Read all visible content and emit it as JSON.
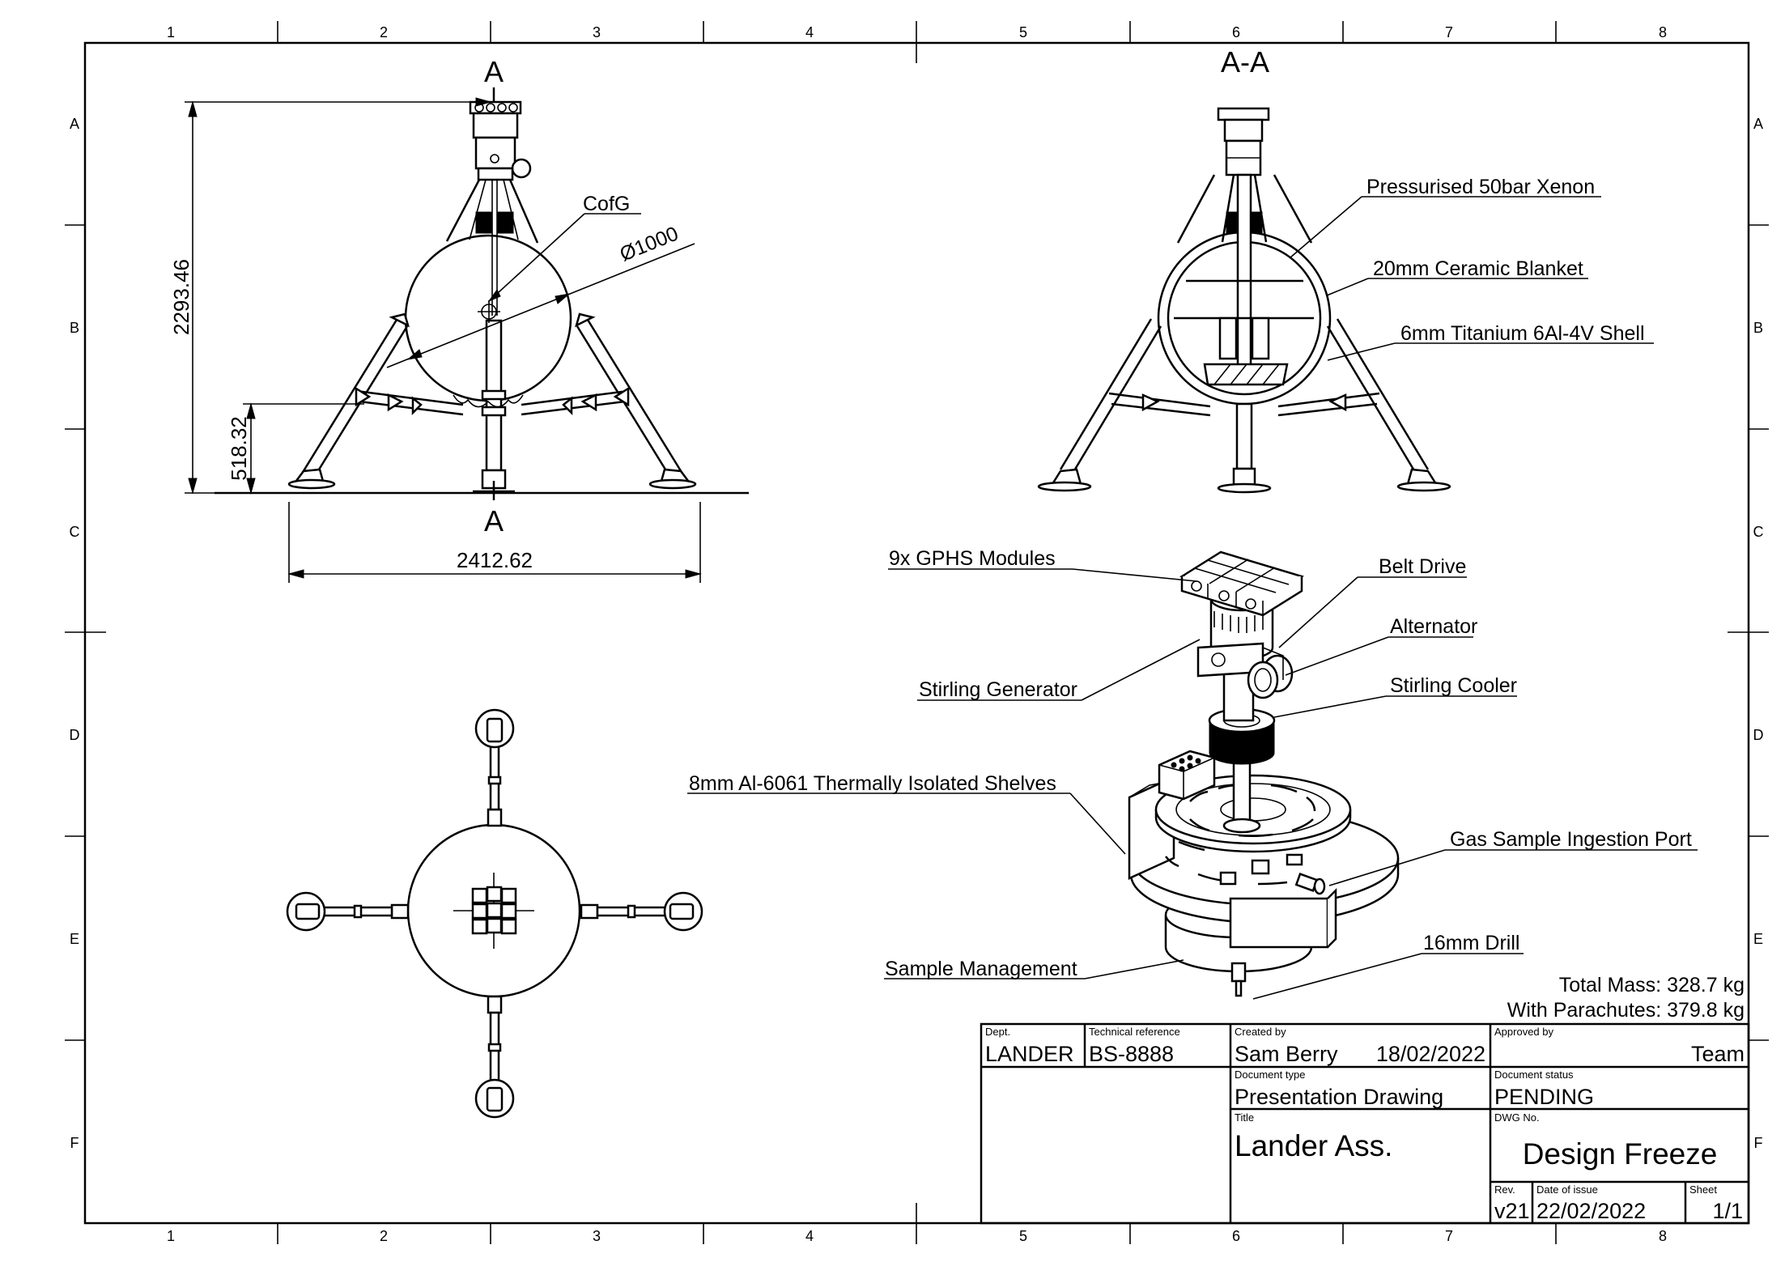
{
  "zones": {
    "columns": [
      "1",
      "2",
      "3",
      "4",
      "5",
      "6",
      "7",
      "8"
    ],
    "rows": [
      "A",
      "B",
      "C",
      "D",
      "E",
      "F"
    ]
  },
  "front_view": {
    "section_mark_top": "A",
    "section_mark_bottom": "A",
    "cog_label": "CofG",
    "diameter_label": "Ø1000",
    "height_dim": "2293.46",
    "leg_height_dim": "518.32",
    "width_dim": "2412.62"
  },
  "section_view": {
    "title": "A-A",
    "labels": {
      "xenon": "Pressurised 50bar Xenon",
      "blanket": "20mm Ceramic Blanket",
      "shell": "6mm Titanium 6Al-4V Shell"
    }
  },
  "iso_view": {
    "labels": {
      "gphs": "9x GPHS Modules",
      "belt": "Belt Drive",
      "alternator": "Alternator",
      "stirling_gen": "Stirling Generator",
      "stirling_cooler": "Stirling Cooler",
      "shelves": "8mm Al-6061 Thermally Isolated Shelves",
      "gas_port": "Gas Sample Ingestion Port",
      "drill": "16mm Drill",
      "sample_mgmt": "Sample Management"
    }
  },
  "mass": {
    "total": "Total Mass: 328.7 kg",
    "with_parachutes": "With Parachutes: 379.8 kg"
  },
  "title_block": {
    "dept_label": "Dept.",
    "dept": "LANDER",
    "tech_ref_label": "Technical reference",
    "tech_ref": "BS-8888",
    "created_by_label": "Created by",
    "created_by": "Sam Berry",
    "created_date": "18/02/2022",
    "approved_by_label": "Approved by",
    "approved_by": "Team",
    "doc_type_label": "Document type",
    "doc_type": "Presentation Drawing",
    "doc_status_label": "Document status",
    "doc_status": "PENDING",
    "title_label": "Title",
    "title": "Lander Ass.",
    "dwg_no_label": "DWG No.",
    "dwg_no": "Design Freeze",
    "rev_label": "Rev.",
    "rev": "v21",
    "date_issue_label": "Date of issue",
    "date_issue": "22/02/2022",
    "sheet_label": "Sheet",
    "sheet": "1/1"
  }
}
